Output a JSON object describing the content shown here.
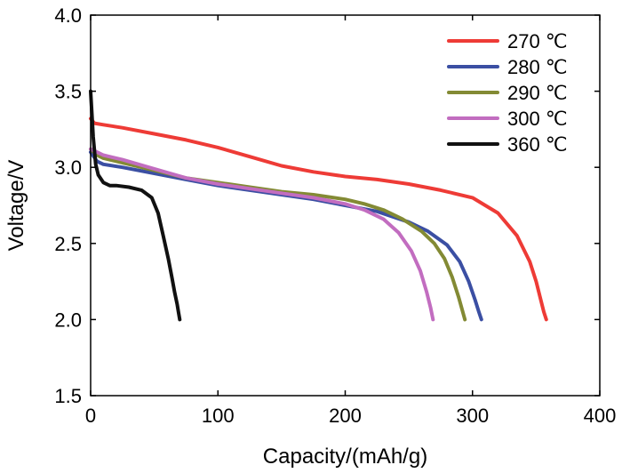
{
  "chart_data": {
    "type": "line",
    "xlabel": "Capacity/(mAh/g)",
    "ylabel": "Voltage/V",
    "xlim": [
      0,
      400
    ],
    "ylim": [
      1.5,
      4.0
    ],
    "xticks": [
      "0",
      "100",
      "200",
      "300",
      "400"
    ],
    "yticks": [
      "1.5",
      "2.0",
      "2.5",
      "3.0",
      "3.5",
      "4.0"
    ],
    "grid": false,
    "legend_position": "top-right",
    "series": [
      {
        "name": "270 ℃",
        "color": "#ee3b36",
        "x": [
          0,
          3,
          10,
          25,
          50,
          75,
          100,
          125,
          150,
          175,
          200,
          225,
          250,
          275,
          300,
          320,
          335,
          345,
          350,
          353,
          356,
          358
        ],
        "y": [
          3.32,
          3.29,
          3.28,
          3.26,
          3.22,
          3.18,
          3.13,
          3.07,
          3.01,
          2.97,
          2.94,
          2.92,
          2.89,
          2.85,
          2.8,
          2.7,
          2.55,
          2.38,
          2.25,
          2.15,
          2.05,
          2.0
        ]
      },
      {
        "name": "280 ℃",
        "color": "#3b4fa3",
        "x": [
          0,
          5,
          10,
          25,
          50,
          75,
          100,
          125,
          150,
          175,
          200,
          225,
          250,
          265,
          280,
          290,
          297,
          302,
          305,
          307
        ],
        "y": [
          3.1,
          3.04,
          3.02,
          3.0,
          2.96,
          2.92,
          2.88,
          2.85,
          2.82,
          2.79,
          2.75,
          2.71,
          2.64,
          2.58,
          2.49,
          2.38,
          2.25,
          2.13,
          2.05,
          2.0
        ]
      },
      {
        "name": "290 ℃",
        "color": "#838a34",
        "x": [
          0,
          5,
          10,
          25,
          50,
          75,
          100,
          125,
          150,
          175,
          200,
          215,
          230,
          245,
          260,
          270,
          278,
          284,
          289,
          292,
          294
        ],
        "y": [
          3.12,
          3.08,
          3.06,
          3.03,
          2.98,
          2.93,
          2.9,
          2.87,
          2.84,
          2.82,
          2.79,
          2.76,
          2.72,
          2.66,
          2.58,
          2.5,
          2.4,
          2.28,
          2.15,
          2.06,
          2.0
        ]
      },
      {
        "name": "300 ℃",
        "color": "#c26dc0",
        "x": [
          0,
          5,
          10,
          25,
          50,
          75,
          100,
          125,
          150,
          175,
          200,
          215,
          230,
          242,
          252,
          259,
          264,
          267,
          269
        ],
        "y": [
          3.12,
          3.1,
          3.08,
          3.05,
          2.99,
          2.93,
          2.89,
          2.86,
          2.83,
          2.8,
          2.76,
          2.72,
          2.66,
          2.57,
          2.45,
          2.32,
          2.18,
          2.08,
          2.0
        ]
      },
      {
        "name": "360 ℃",
        "color": "#111111",
        "x": [
          0,
          2,
          4,
          6,
          10,
          15,
          20,
          30,
          40,
          48,
          53,
          57,
          61,
          64,
          66,
          68,
          69,
          70
        ],
        "y": [
          3.5,
          3.2,
          3.02,
          2.95,
          2.9,
          2.88,
          2.88,
          2.87,
          2.85,
          2.8,
          2.7,
          2.55,
          2.4,
          2.27,
          2.18,
          2.1,
          2.05,
          2.0
        ]
      }
    ]
  }
}
